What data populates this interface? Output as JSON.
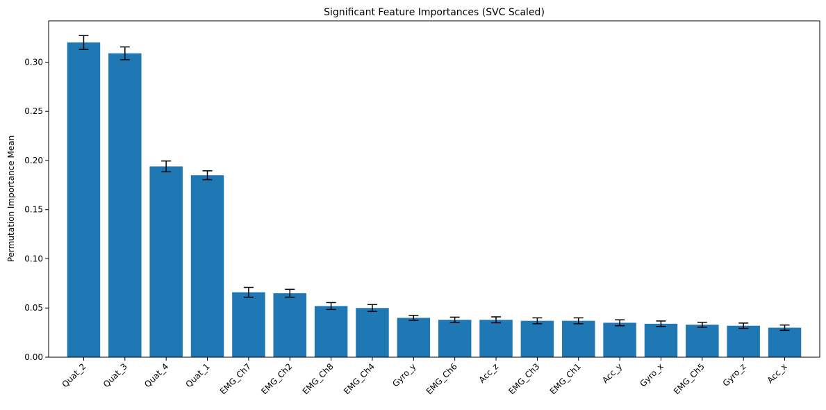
{
  "chart_data": {
    "type": "bar",
    "title": "Significant Feature Importances (SVC Scaled)",
    "xlabel": "",
    "ylabel": "Permutation Importance Mean",
    "ylim": [
      0,
      0.342
    ],
    "yticks": [
      0.0,
      0.05,
      0.1,
      0.15,
      0.2,
      0.25,
      0.3
    ],
    "ytick_labels": [
      "0.00",
      "0.05",
      "0.10",
      "0.15",
      "0.20",
      "0.25",
      "0.30"
    ],
    "categories": [
      "Quat_2",
      "Quat_3",
      "Quat_4",
      "Quat_1",
      "EMG_Ch7",
      "EMG_Ch2",
      "EMG_Ch8",
      "EMG_Ch4",
      "Gyro_y",
      "EMG_Ch6",
      "Acc_z",
      "EMG_Ch3",
      "EMG_Ch1",
      "Acc_y",
      "Gyro_x",
      "EMG_Ch5",
      "Gyro_z",
      "Acc_x"
    ],
    "values": [
      0.32,
      0.309,
      0.194,
      0.185,
      0.066,
      0.065,
      0.052,
      0.05,
      0.04,
      0.038,
      0.038,
      0.037,
      0.037,
      0.035,
      0.034,
      0.033,
      0.032,
      0.03
    ],
    "errors": [
      0.007,
      0.0065,
      0.0055,
      0.0045,
      0.005,
      0.004,
      0.0035,
      0.0035,
      0.0025,
      0.0027,
      0.003,
      0.003,
      0.003,
      0.003,
      0.0028,
      0.0025,
      0.0027,
      0.0027
    ],
    "bar_color": "#1f77b4",
    "error_color": "#000000",
    "grid": false,
    "legend": "none"
  }
}
